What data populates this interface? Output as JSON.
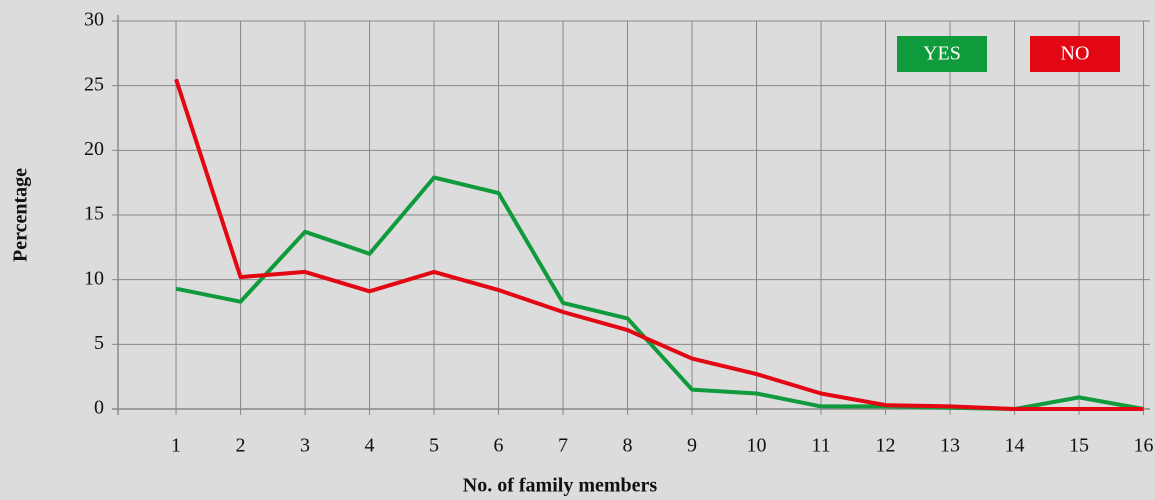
{
  "chart_data": {
    "type": "line",
    "x_label": "No. of family members",
    "y_label": "Percentage",
    "x": [
      1,
      2,
      3,
      4,
      5,
      6,
      7,
      8,
      9,
      10,
      11,
      12,
      13,
      14,
      15,
      16
    ],
    "series": [
      {
        "name": "YES",
        "color": "#0f9b3c",
        "values": [
          9.3,
          8.3,
          13.7,
          12.0,
          17.9,
          16.7,
          8.2,
          7.0,
          1.5,
          1.2,
          0.2,
          0.2,
          0.1,
          0.0,
          0.9,
          0.0
        ]
      },
      {
        "name": "NO",
        "color": "#e30613",
        "values": [
          25.5,
          10.2,
          10.6,
          9.1,
          10.6,
          9.2,
          7.5,
          6.1,
          3.9,
          2.7,
          1.2,
          0.3,
          0.2,
          0.0,
          0.0,
          0.0
        ]
      }
    ],
    "xlim": [
      0.1,
      16.1
    ],
    "xticks": [
      1,
      2,
      3,
      4,
      5,
      6,
      7,
      8,
      9,
      10,
      11,
      12,
      13,
      14,
      15,
      16
    ],
    "ylim": [
      0,
      30
    ],
    "yticks": [
      0,
      5,
      10,
      15,
      20,
      25,
      30
    ],
    "grid": true,
    "legend": "top-right"
  }
}
